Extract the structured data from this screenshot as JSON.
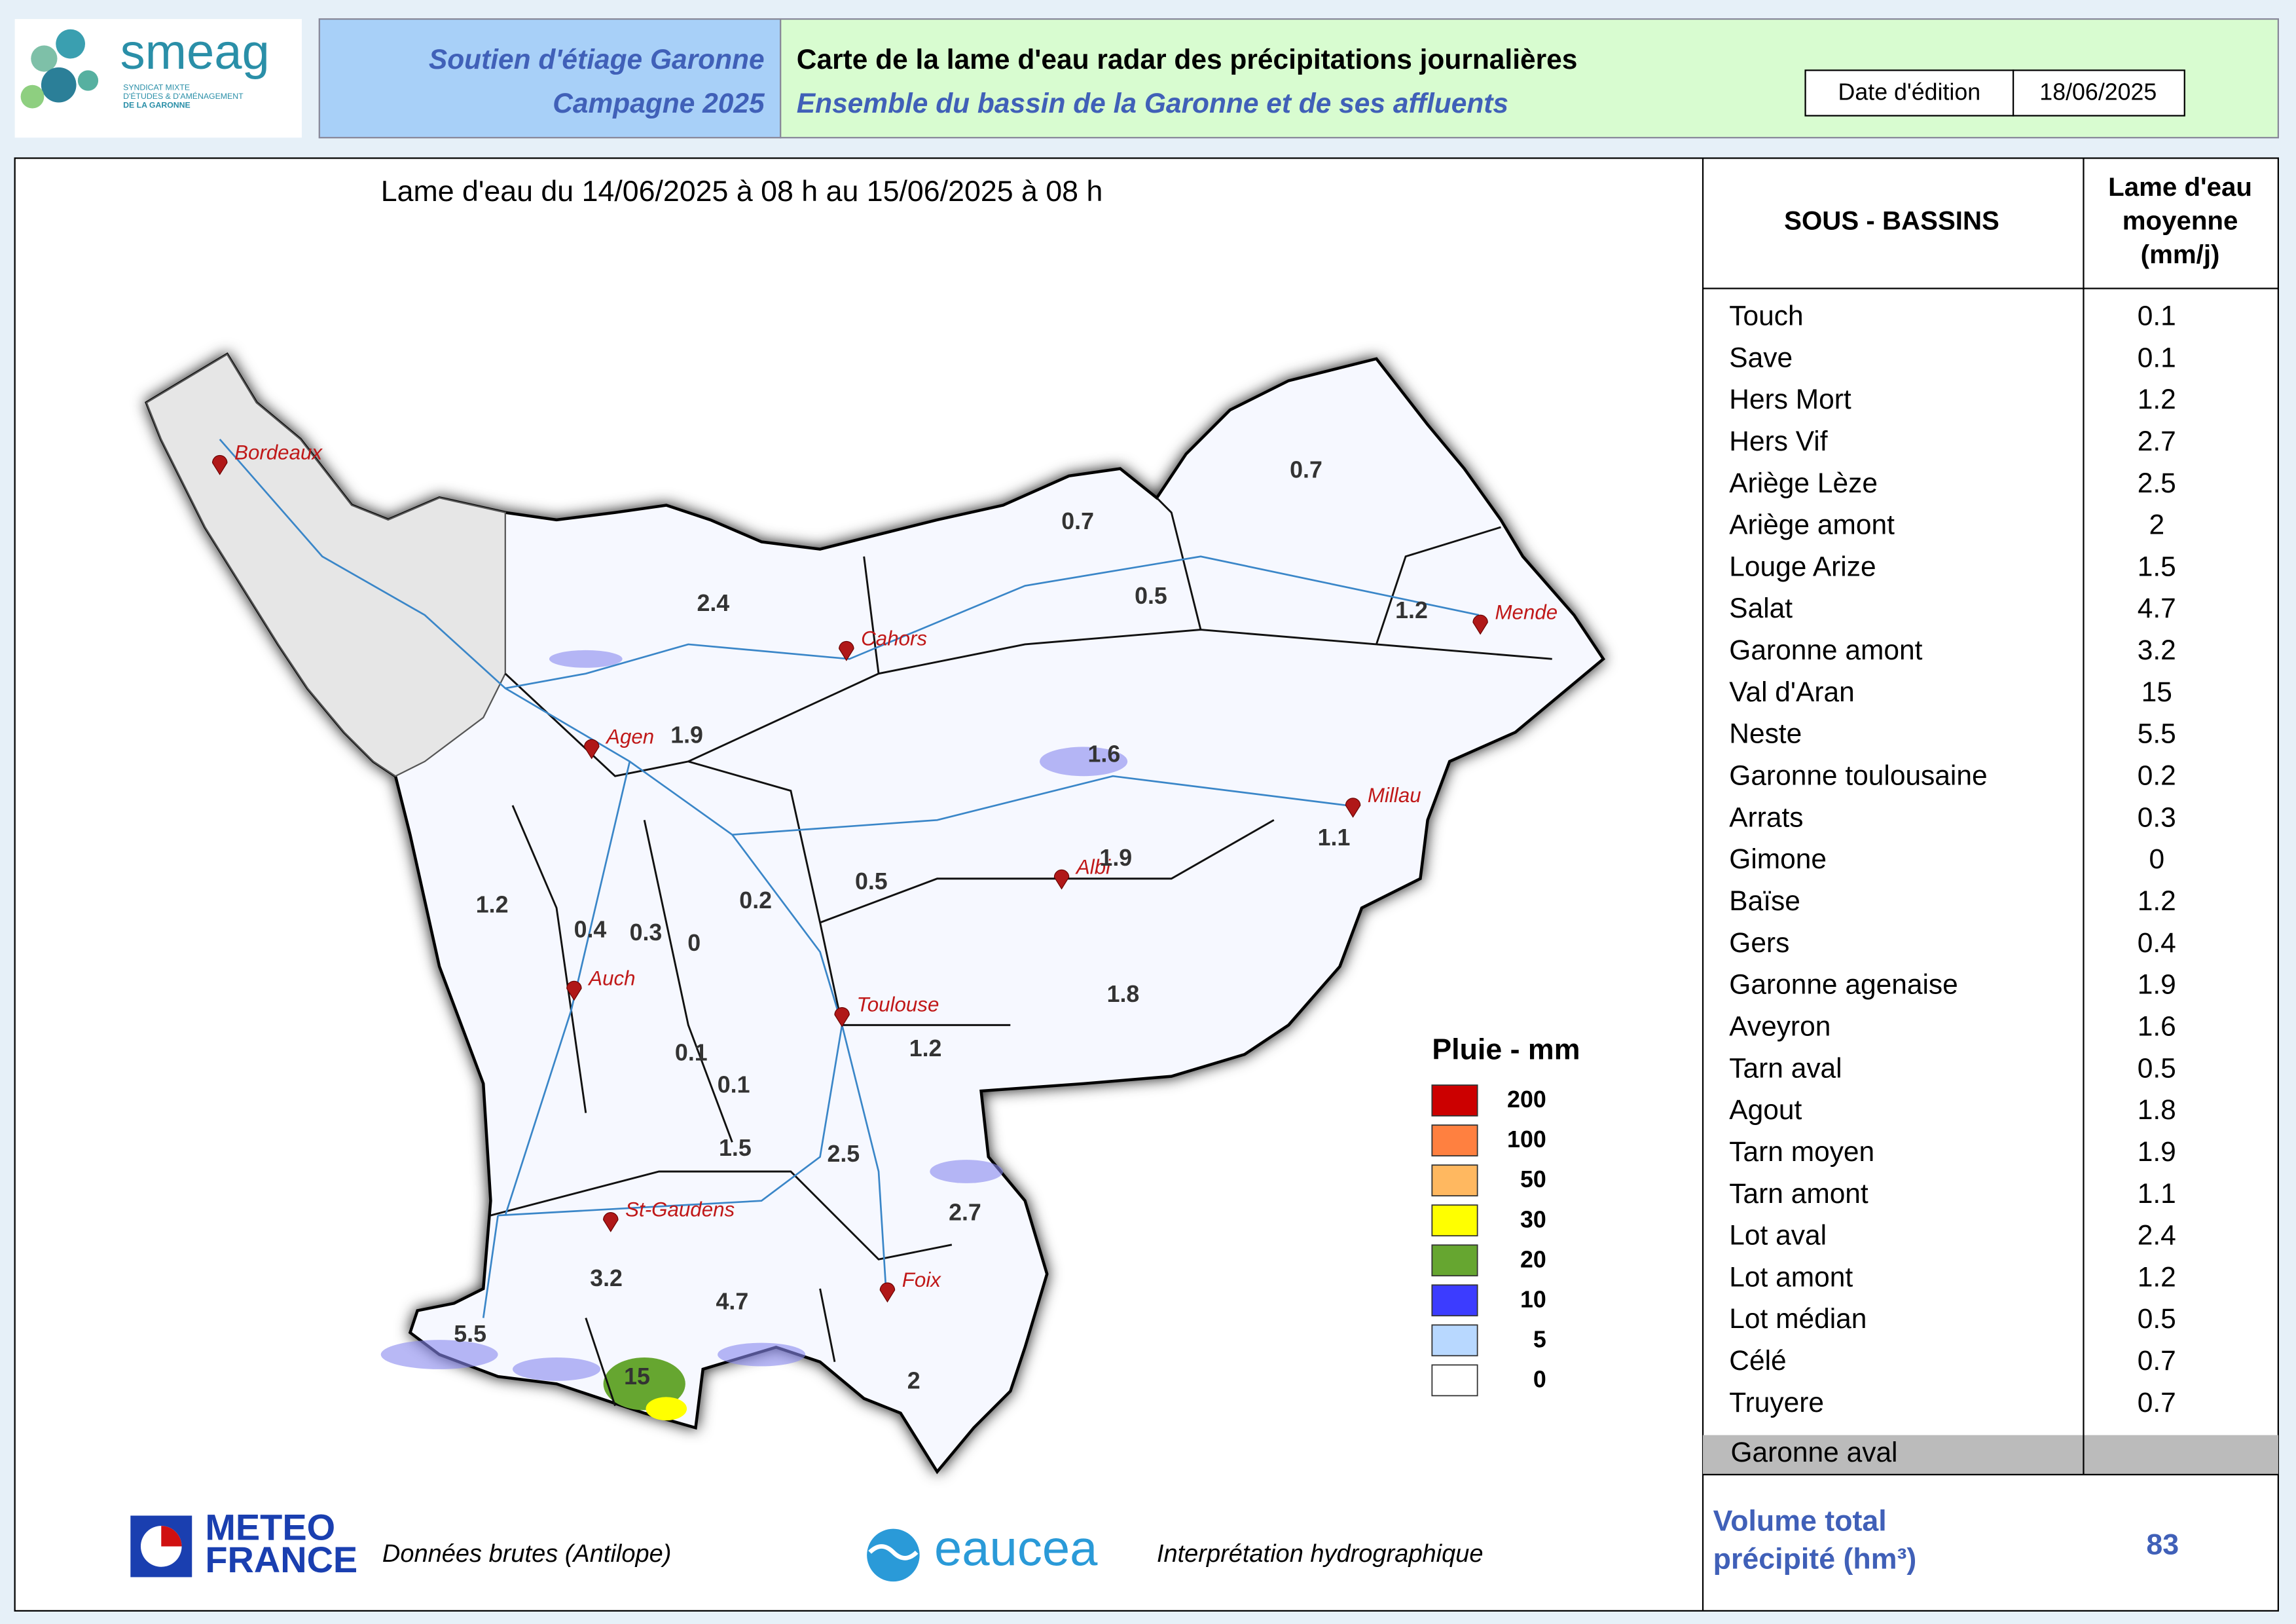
{
  "header": {
    "logo": "smeag",
    "logo_subtitle": [
      "SYNDICAT MIXTE",
      "D'ÉTUDES & D'AMÉNAGEMENT",
      "DE LA GARONNE"
    ],
    "program": [
      "Soutien d'étiage Garonne",
      "Campagne 2025"
    ],
    "title": "Carte de la lame d'eau radar des précipitations journalières",
    "subtitle": "Ensemble du bassin de la Garonne et de ses affluents",
    "date_label": "Date d'édition",
    "date": "18/06/2025"
  },
  "map": {
    "title": "Lame d'eau du 14/06/2025  à 08 h au  15/06/2025  à 08 h",
    "cities": [
      "Bordeaux",
      "Cahors",
      "Agen",
      "Mende",
      "Millau",
      "Albi",
      "Auch",
      "Toulouse",
      "St-Gaudens",
      "Foix"
    ],
    "basin_values": [
      0.7,
      0.7,
      0.5,
      1.2,
      2.4,
      1.9,
      1.6,
      1.9,
      0.5,
      1.1,
      1.2,
      0.4,
      0.3,
      0,
      0.2,
      1.8,
      1.2,
      0.1,
      0.1,
      1.5,
      2.5,
      2.7,
      3.2,
      4.7,
      5.5,
      15,
      2
    ],
    "legend": {
      "title": "Pluie - mm",
      "levels": [
        200,
        100,
        50,
        30,
        20,
        10,
        5,
        0
      ],
      "colors": [
        "#cc0000",
        "#ff8040",
        "#ffb860",
        "#ffff00",
        "#66a630",
        "#3c3cff",
        "#b8d8ff",
        "#ffffff"
      ]
    }
  },
  "table": {
    "header": [
      "SOUS - BASSINS",
      [
        "Lame d'eau",
        "moyenne",
        "(mm/j)"
      ]
    ],
    "rows": [
      [
        "Touch",
        0.1
      ],
      [
        "Save",
        0.1
      ],
      [
        "Hers Mort",
        1.2
      ],
      [
        "Hers Vif",
        2.7
      ],
      [
        "Ariège Lèze",
        2.5
      ],
      [
        "Ariège amont",
        2
      ],
      [
        "Louge Arize",
        1.5
      ],
      [
        "Salat",
        4.7
      ],
      [
        "Garonne amont",
        3.2
      ],
      [
        "Val d'Aran",
        15
      ],
      [
        "Neste",
        5.5
      ],
      [
        "Garonne toulousaine",
        0.2
      ],
      [
        "Arrats",
        0.3
      ],
      [
        "Gimone",
        0
      ],
      [
        "Baïse",
        1.2
      ],
      [
        "Gers",
        0.4
      ],
      [
        "Garonne agenaise",
        1.9
      ],
      [
        "Aveyron",
        1.6
      ],
      [
        "Tarn aval",
        0.5
      ],
      [
        "Agout",
        1.8
      ],
      [
        "Tarn moyen",
        1.9
      ],
      [
        "Tarn amont",
        1.1
      ],
      [
        "Lot aval",
        2.4
      ],
      [
        "Lot amont",
        1.2
      ],
      [
        "Lot médian",
        0.5
      ],
      [
        "Célé",
        0.7
      ],
      [
        "Truyere",
        0.7
      ]
    ],
    "shaded_row": "Garonne aval",
    "total_label": [
      "Volume total",
      "précipité (hm³)"
    ],
    "total_value": 83
  },
  "footer": {
    "meteo": [
      "METEO",
      "FRANCE"
    ],
    "meteo_note": "Données brutes (Antilope)",
    "eaucea": "eaucea",
    "eaucea_note": "Interprétation hydrographique"
  }
}
